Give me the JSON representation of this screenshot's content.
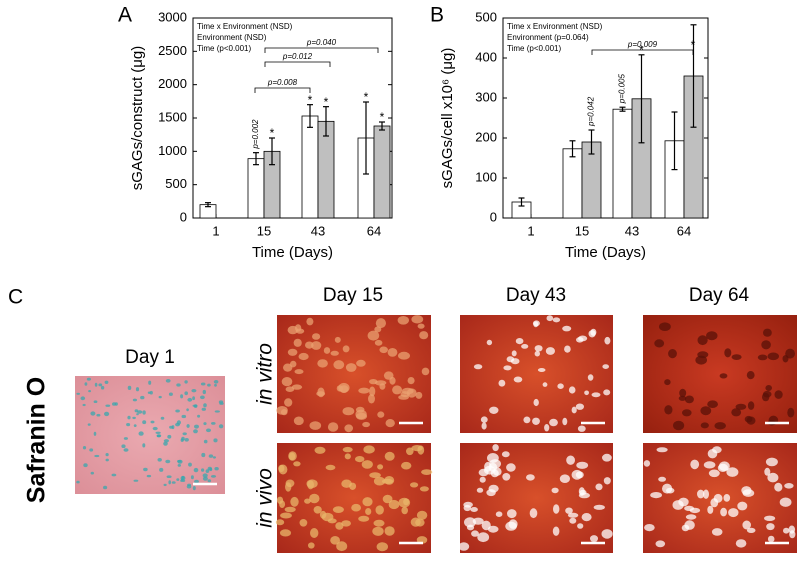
{
  "chart_data": [
    {
      "type": "bar",
      "panel": "A",
      "ylabel": "sGAGs/construct (μg)",
      "xlabel": "Time (Days)",
      "categories": [
        "1",
        "15",
        "43",
        "64"
      ],
      "series": [
        {
          "color": "#ffffff",
          "values": [
            200,
            890,
            1530,
            1200
          ],
          "errors": [
            30,
            90,
            170,
            540
          ]
        },
        {
          "color": "#bfbfbf",
          "values": [
            null,
            1000,
            1450,
            1380
          ],
          "errors": [
            null,
            200,
            220,
            60
          ]
        }
      ],
      "ylim": [
        0,
        3000
      ],
      "yticks": [
        0,
        500,
        1000,
        1500,
        2000,
        2500,
        3000
      ],
      "annotations": [
        "Time x Environment (NSD)",
        "Environment (NSD)",
        "Time (p<0.001)"
      ],
      "brackets": [
        "p=0.008",
        "p=0.012",
        "p=0.040"
      ],
      "markers": [
        "p=0.002",
        "*",
        "*",
        "*",
        "*",
        "*"
      ]
    },
    {
      "type": "bar",
      "panel": "B",
      "ylabel": "sGAGs/cell x10⁶ (μg)",
      "xlabel": "Time (Days)",
      "categories": [
        "1",
        "15",
        "43",
        "64"
      ],
      "series": [
        {
          "color": "#ffffff",
          "values": [
            40,
            173,
            272,
            193
          ],
          "errors": [
            10,
            20,
            5,
            72
          ]
        },
        {
          "color": "#bfbfbf",
          "values": [
            null,
            190,
            298,
            355
          ],
          "errors": [
            null,
            30,
            110,
            128
          ]
        }
      ],
      "ylim": [
        0,
        500
      ],
      "yticks": [
        0,
        100,
        200,
        300,
        400,
        500
      ],
      "annotations": [
        "Time x Environment (NSD)",
        "Environment (p=0.064)",
        "Time (p<0.001)"
      ],
      "brackets": [
        "p=0.009"
      ],
      "markers": [
        "p=0.042",
        "p=0.005",
        "*",
        "*"
      ]
    }
  ],
  "panel_c": {
    "letter": "C",
    "stain": "Safranin O",
    "rows": [
      "in vitro",
      "in vivo"
    ],
    "days": [
      "Day 1",
      "Day 15",
      "Day 43",
      "Day 64"
    ]
  }
}
